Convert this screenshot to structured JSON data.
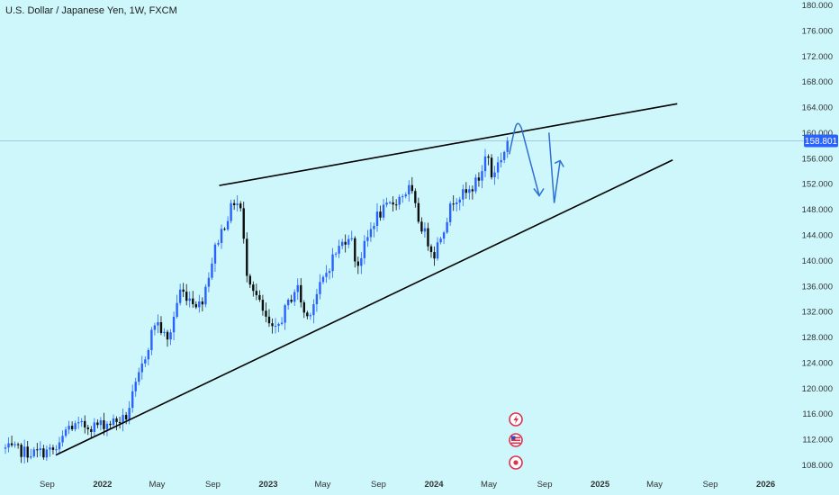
{
  "chart_data": {
    "type": "candlestick",
    "title": "U.S. Dollar / Japanese Yen, 1W, FXCM",
    "y_axis": {
      "ticks": [
        "180.000",
        "176.000",
        "172.000",
        "168.000",
        "164.000",
        "160.000",
        "156.000",
        "152.000",
        "148.000",
        "144.000",
        "140.000",
        "136.000",
        "132.000",
        "128.000",
        "124.000",
        "120.000",
        "116.000",
        "112.000",
        "108.000"
      ],
      "tick_values": [
        180,
        176,
        172,
        168,
        164,
        160,
        156,
        152,
        148,
        144,
        140,
        136,
        132,
        128,
        124,
        120,
        116,
        112,
        108
      ],
      "range": [
        107,
        181
      ],
      "side": "right"
    },
    "x_axis": {
      "ticks": [
        {
          "label": "Sep",
          "date": "2021-09-01",
          "bold": false
        },
        {
          "label": "2022",
          "date": "2022-01-01",
          "bold": true
        },
        {
          "label": "May",
          "date": "2022-05-01",
          "bold": false
        },
        {
          "label": "Sep",
          "date": "2022-09-01",
          "bold": false
        },
        {
          "label": "2023",
          "date": "2023-01-01",
          "bold": true
        },
        {
          "label": "May",
          "date": "2023-05-01",
          "bold": false
        },
        {
          "label": "Sep",
          "date": "2023-09-01",
          "bold": false
        },
        {
          "label": "2024",
          "date": "2024-01-01",
          "bold": true
        },
        {
          "label": "May",
          "date": "2024-05-01",
          "bold": false
        },
        {
          "label": "Sep",
          "date": "2024-09-01",
          "bold": false
        },
        {
          "label": "2025",
          "date": "2025-01-01",
          "bold": true
        },
        {
          "label": "May",
          "date": "2025-05-01",
          "bold": false
        },
        {
          "label": "Sep",
          "date": "2025-09-01",
          "bold": false
        },
        {
          "label": "2026",
          "date": "2026-01-01",
          "bold": true
        }
      ],
      "range": [
        "2021-06-01",
        "2026-04-01"
      ]
    },
    "last_price": 158.801,
    "colors": {
      "up": "#2962ff",
      "down": "#0d0d0d",
      "trendline": "#000000",
      "projection": "#2f6fd6",
      "price_line": "#7a8fb0",
      "badge": "#2962ff"
    },
    "anchors": [
      {
        "date": "2021-06-01",
        "price": 110.6
      },
      {
        "date": "2021-08-01",
        "price": 109.9
      },
      {
        "date": "2021-09-25",
        "price": 110.4
      },
      {
        "date": "2021-10-15",
        "price": 114.0
      },
      {
        "date": "2021-12-15",
        "price": 114.2
      },
      {
        "date": "2022-02-20",
        "price": 115.2
      },
      {
        "date": "2022-03-25",
        "price": 122.5
      },
      {
        "date": "2022-04-28",
        "price": 130.8
      },
      {
        "date": "2022-05-25",
        "price": 127.2
      },
      {
        "date": "2022-06-20",
        "price": 135.4
      },
      {
        "date": "2022-07-28",
        "price": 133.4
      },
      {
        "date": "2022-08-05",
        "price": 133.0
      },
      {
        "date": "2022-09-10",
        "price": 143.0
      },
      {
        "date": "2022-10-20",
        "price": 149.6
      },
      {
        "date": "2022-11-03",
        "price": 147.8
      },
      {
        "date": "2022-11-12",
        "price": 139.0
      },
      {
        "date": "2022-12-25",
        "price": 131.0
      },
      {
        "date": "2023-01-14",
        "price": 128.5
      },
      {
        "date": "2023-03-05",
        "price": 136.2
      },
      {
        "date": "2023-03-25",
        "price": 130.8
      },
      {
        "date": "2023-05-25",
        "price": 140.8
      },
      {
        "date": "2023-06-30",
        "price": 144.5
      },
      {
        "date": "2023-07-15",
        "price": 139.0
      },
      {
        "date": "2023-08-25",
        "price": 146.8
      },
      {
        "date": "2023-10-15",
        "price": 149.8
      },
      {
        "date": "2023-11-10",
        "price": 151.4
      },
      {
        "date": "2023-11-25",
        "price": 147.0
      },
      {
        "date": "2024-01-01",
        "price": 141.0
      },
      {
        "date": "2024-02-15",
        "price": 150.0
      },
      {
        "date": "2024-03-15",
        "price": 150.5
      },
      {
        "date": "2024-04-12",
        "price": 153.2
      },
      {
        "date": "2024-04-28",
        "price": 157.5
      },
      {
        "date": "2024-05-05",
        "price": 153.0
      },
      {
        "date": "2024-06-01",
        "price": 156.8
      },
      {
        "date": "2024-06-15",
        "price": 158.8
      }
    ],
    "trendlines": [
      {
        "name": "upper",
        "from": {
          "date": "2022-09-15",
          "price": 151.8
        },
        "to": {
          "date": "2025-06-20",
          "price": 164.6
        }
      },
      {
        "name": "lower",
        "from": {
          "date": "2021-09-20",
          "price": 109.6
        },
        "to": {
          "date": "2025-06-10",
          "price": 155.8
        }
      }
    ],
    "projection": [
      {
        "date": "2024-06-15",
        "price": 156.7
      },
      {
        "date": "2024-07-01",
        "price": 159.8
      },
      {
        "date": "2024-07-12",
        "price": 161.6
      },
      {
        "date": "2024-07-28",
        "price": 159.5
      },
      {
        "date": "2024-08-20",
        "price": 150.2
      },
      {
        "date": "2024-09-22",
        "price": 150.9
      },
      {
        "date": "2024-10-05",
        "price": 155.7
      }
    ],
    "icons": [
      "flash-icon",
      "us-flag-icon",
      "record-icon"
    ]
  }
}
